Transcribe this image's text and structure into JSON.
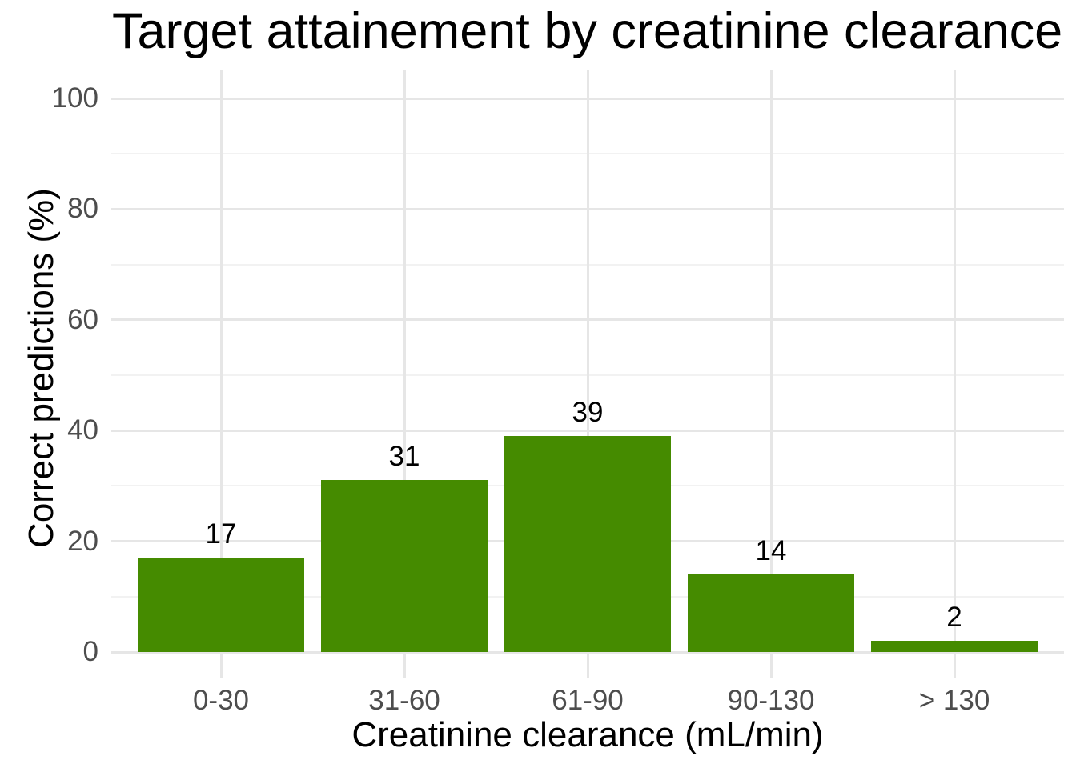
{
  "chart_data": {
    "type": "bar",
    "title": "Target attainement by creatinine clearance",
    "xlabel": "Creatinine clearance (mL/min)",
    "ylabel": "Correct predictions (%)",
    "categories": [
      "0-30",
      "31-60",
      "61-90",
      "90-130",
      "> 130"
    ],
    "values": [
      17,
      31,
      39,
      14,
      2
    ],
    "bar_value_labels": [
      "17",
      "31",
      "39",
      "14",
      "2"
    ],
    "ylim": [
      0,
      100
    ],
    "yticks": [
      0,
      20,
      40,
      60,
      80,
      100
    ],
    "yticks_minor": [
      10,
      30,
      50,
      70,
      90
    ],
    "legend_position": "none",
    "grid": {
      "horizontal_major": true,
      "horizontal_minor": true,
      "vertical_major_at_category_centers": true
    },
    "colors": {
      "bar_fill": "#458B00",
      "grid_major": "#E6E6E6",
      "grid_minor": "#F2F2F2",
      "tick_label_text": "#4D4D4D",
      "title_text": "#000000",
      "axis_title_text": "#000000",
      "background": "#FFFFFF"
    }
  }
}
